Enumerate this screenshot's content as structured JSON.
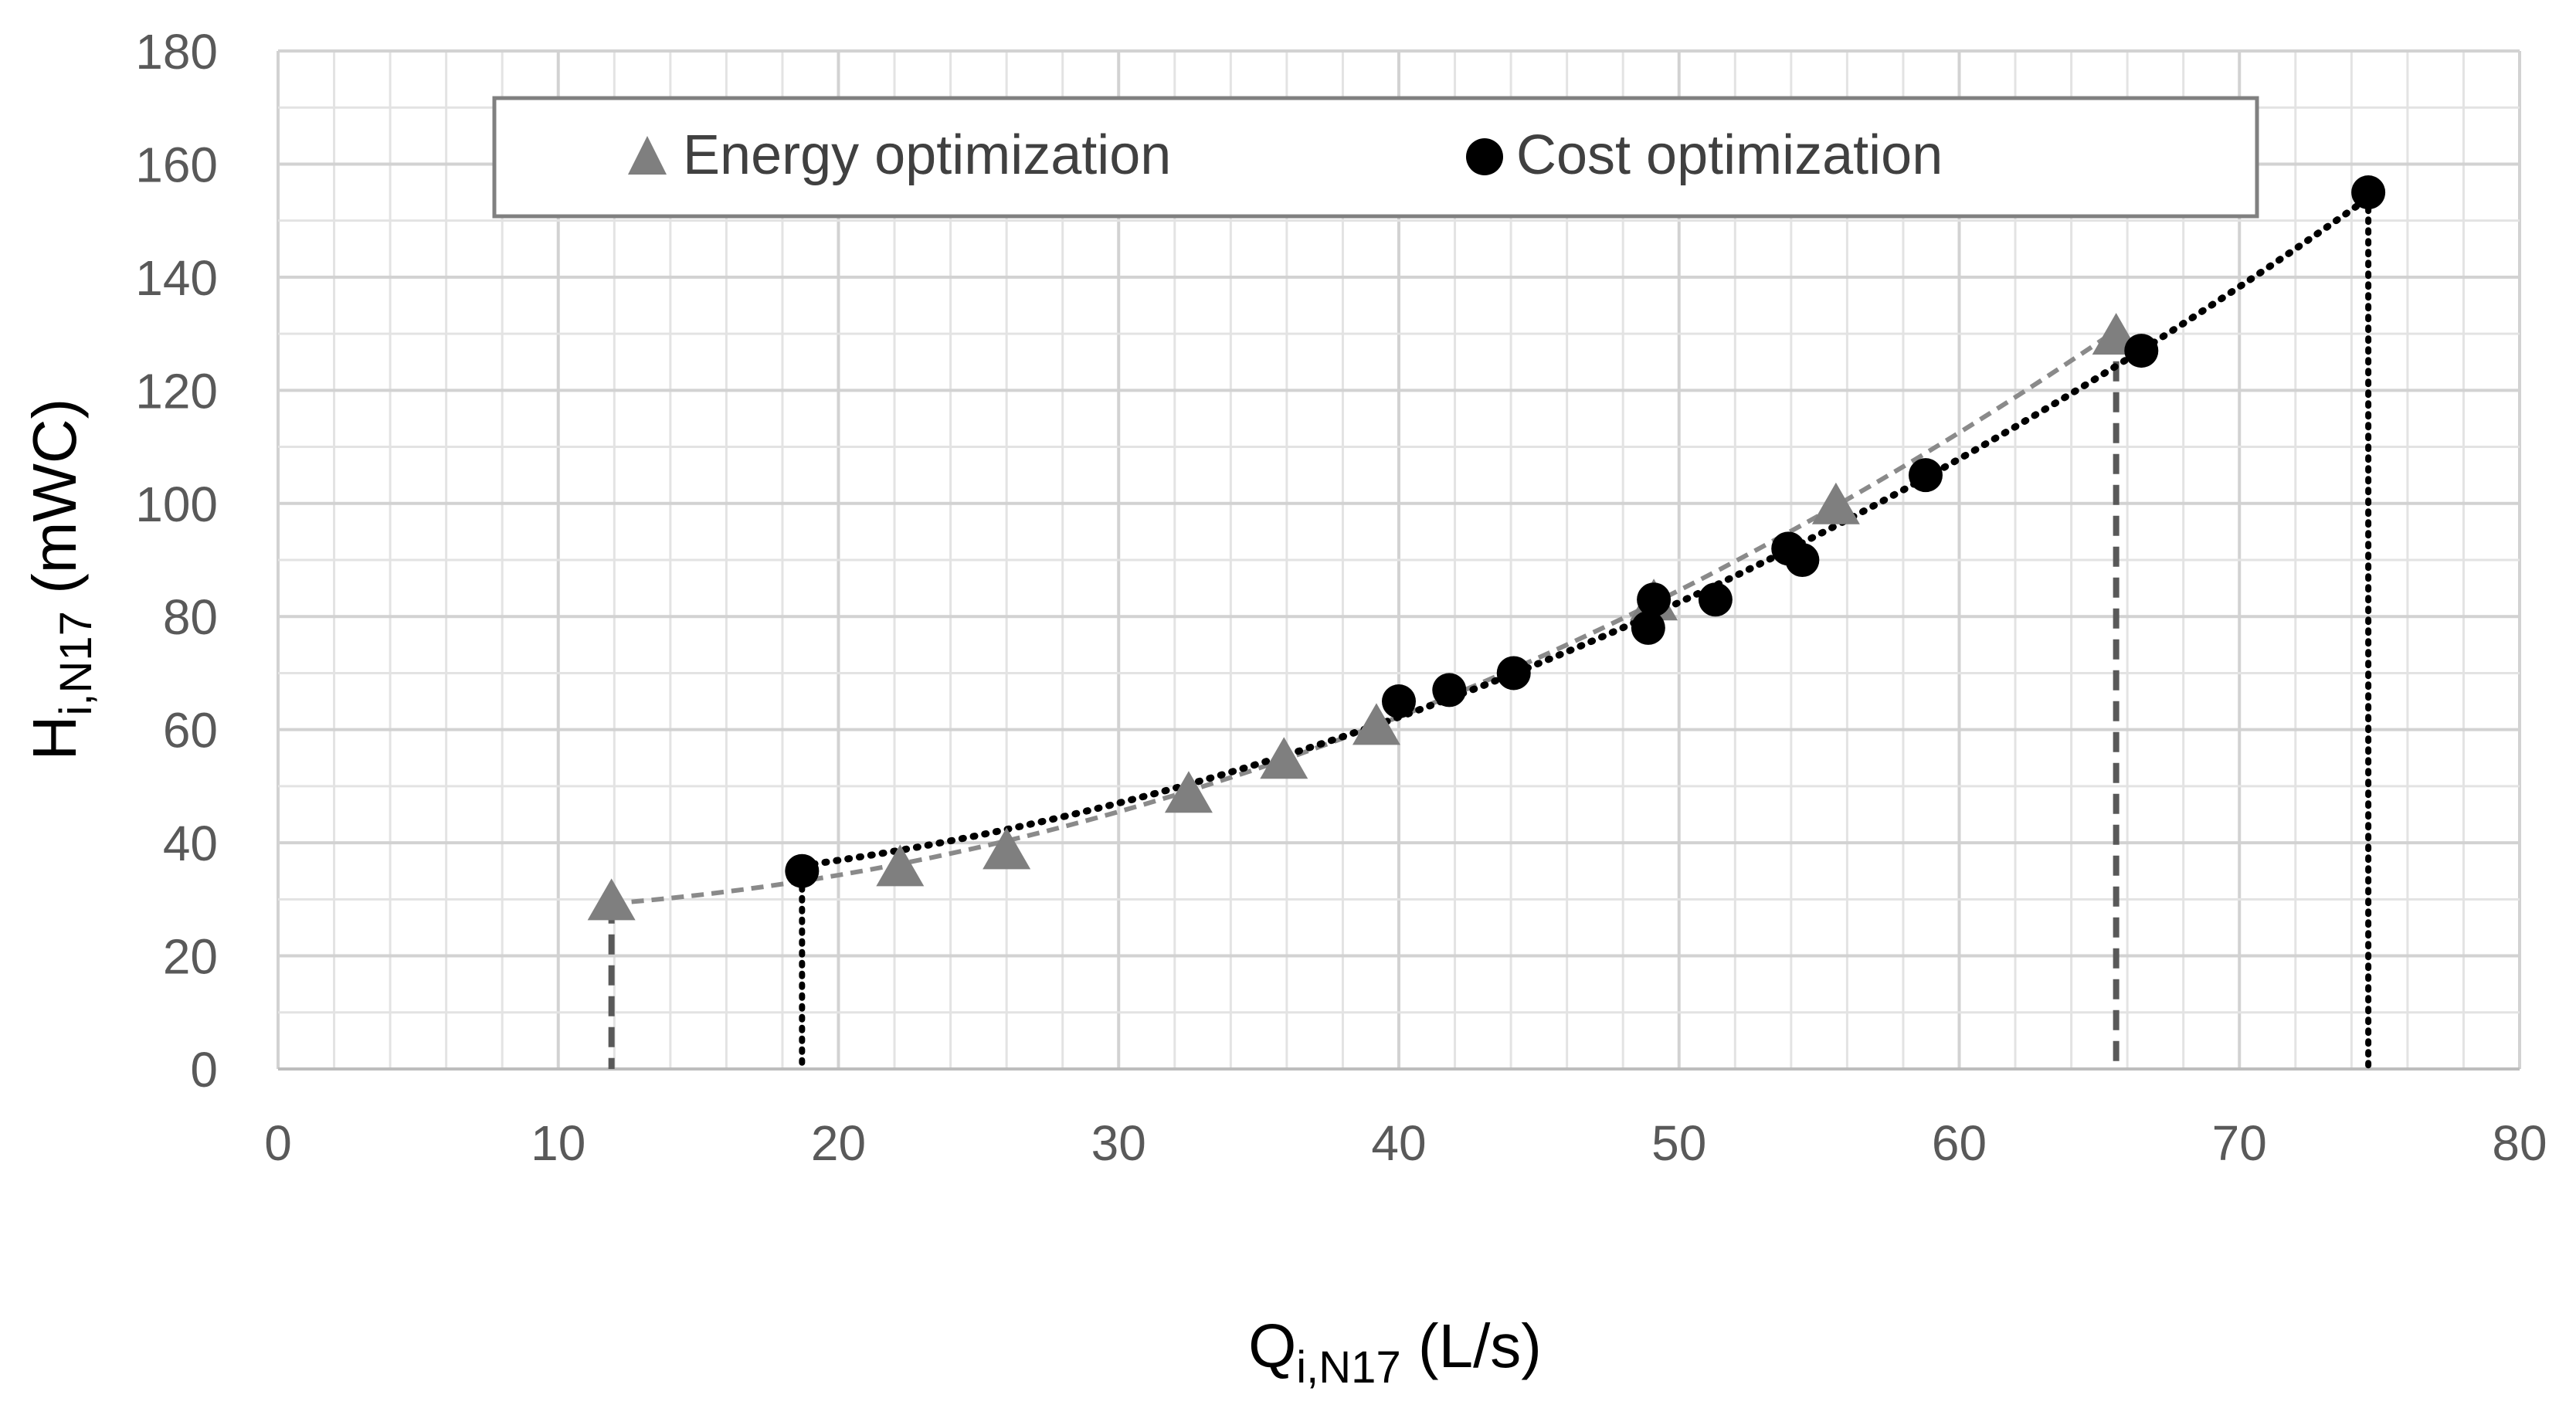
{
  "chart_data": {
    "type": "scatter",
    "title": "",
    "xlabel": {
      "main": "Q",
      "sub": "i,N17",
      "unit": " (L/s)"
    },
    "ylabel": {
      "main": "H",
      "sub": "i,N17",
      "unit": " (mWC)"
    },
    "xlim": [
      0,
      80
    ],
    "ylim": [
      0,
      180
    ],
    "x_ticks": [
      0,
      10,
      20,
      30,
      40,
      50,
      60,
      70,
      80
    ],
    "y_ticks": [
      0,
      20,
      40,
      60,
      80,
      100,
      120,
      140,
      160,
      180
    ],
    "grid": true,
    "legend_position": "top",
    "series": [
      {
        "name": "Energy optimization",
        "marker": "triangle",
        "color": "#7f7f7f",
        "trendline": "dashed",
        "points": [
          {
            "x": 11.9,
            "y": 30
          },
          {
            "x": 22.2,
            "y": 36
          },
          {
            "x": 26.0,
            "y": 39
          },
          {
            "x": 32.5,
            "y": 49
          },
          {
            "x": 35.9,
            "y": 55
          },
          {
            "x": 39.2,
            "y": 61
          },
          {
            "x": 49.1,
            "y": 83
          },
          {
            "x": 55.6,
            "y": 100
          },
          {
            "x": 65.6,
            "y": 130
          }
        ],
        "drop_lines_at_x": [
          11.9,
          65.6
        ]
      },
      {
        "name": "Cost optimization",
        "marker": "circle",
        "color": "#000000",
        "trendline": "dotted",
        "points": [
          {
            "x": 18.7,
            "y": 35
          },
          {
            "x": 40.0,
            "y": 65
          },
          {
            "x": 41.8,
            "y": 67
          },
          {
            "x": 44.1,
            "y": 70
          },
          {
            "x": 48.9,
            "y": 78
          },
          {
            "x": 49.1,
            "y": 83
          },
          {
            "x": 51.3,
            "y": 83
          },
          {
            "x": 53.9,
            "y": 92
          },
          {
            "x": 54.4,
            "y": 90
          },
          {
            "x": 58.8,
            "y": 105
          },
          {
            "x": 66.5,
            "y": 127
          },
          {
            "x": 74.6,
            "y": 155
          }
        ],
        "drop_lines_at_x": [
          18.7,
          74.6
        ]
      }
    ]
  }
}
